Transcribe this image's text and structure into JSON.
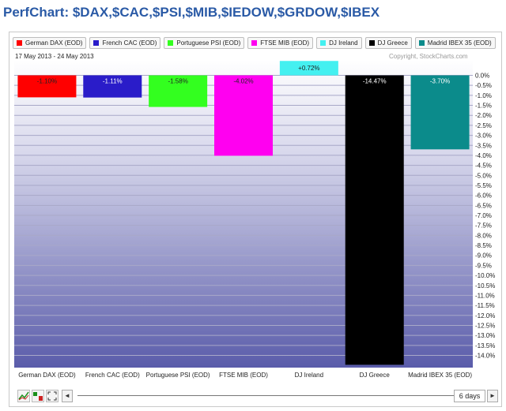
{
  "page": {
    "title": "PerfChart: $DAX,$CAC,$PSI,$MIB,$IEDOW,$GRDOW,$IBEX"
  },
  "header": {
    "date_range": "17 May 2013 - 24 May 2013",
    "copyright": "Copyright, StockCharts.com"
  },
  "legend": [
    {
      "label": "German DAX (EOD)",
      "color": "#ff0000"
    },
    {
      "label": "French CAC (EOD)",
      "color": "#2a1cc9"
    },
    {
      "label": "Portuguese PSI (EOD)",
      "color": "#33ff1f"
    },
    {
      "label": "FTSE MIB (EOD)",
      "color": "#ff00f0"
    },
    {
      "label": "DJ Ireland",
      "color": "#44f0f0"
    },
    {
      "label": "DJ Greece",
      "color": "#000000"
    },
    {
      "label": "Madrid IBEX 35 (EOD)",
      "color": "#0b8b8b"
    }
  ],
  "chart_data": {
    "type": "bar",
    "categories": [
      "German DAX (EOD)",
      "French CAC (EOD)",
      "Portuguese PSI (EOD)",
      "FTSE MIB (EOD)",
      "DJ Ireland",
      "DJ Greece",
      "Madrid IBEX 35 (EOD)"
    ],
    "values": [
      -1.1,
      -1.11,
      -1.58,
      -4.02,
      0.72,
      -14.47,
      -3.7
    ],
    "value_labels": [
      "-1.10%",
      "-1.11%",
      "-1.58%",
      "-4.02%",
      "+0.72%",
      "-14.47%",
      "-3.70%"
    ],
    "colors": [
      "#ff0000",
      "#2a1cc9",
      "#33ff1f",
      "#ff00f0",
      "#44f0f0",
      "#000000",
      "#0b8b8b"
    ],
    "ylim": [
      -14.5,
      0.72
    ],
    "y_ticks": [
      0,
      -0.5,
      -1.0,
      -1.5,
      -2.0,
      -2.5,
      -3.0,
      -3.5,
      -4.0,
      -4.5,
      -5.0,
      -5.5,
      -6.0,
      -6.5,
      -7.0,
      -7.5,
      -8.0,
      -8.5,
      -9.0,
      -9.5,
      -10.0,
      -10.5,
      -11.0,
      -11.5,
      -12.0,
      -12.5,
      -13.0,
      -13.5,
      -14.0
    ],
    "y_tick_labels": [
      "0.0%",
      "-0.5%",
      "-1.0%",
      "-1.5%",
      "-2.0%",
      "-2.5%",
      "-3.0%",
      "-3.5%",
      "-4.0%",
      "-4.5%",
      "-5.0%",
      "-5.5%",
      "-6.0%",
      "-6.5%",
      "-7.0%",
      "-7.5%",
      "-8.0%",
      "-8.5%",
      "-9.0%",
      "-9.5%",
      "-10.0%",
      "-10.5%",
      "-11.0%",
      "-11.5%",
      "-12.0%",
      "-12.5%",
      "-13.0%",
      "-13.5%",
      "-14.0%"
    ],
    "y_axis_position": "right",
    "grid": true,
    "legend_position": "top",
    "title": "",
    "xlabel": "",
    "ylabel": ""
  },
  "controls": {
    "period": "6 days",
    "icons": [
      "line-chart-icon",
      "bar-chart-icon",
      "fullscreen-icon"
    ],
    "scroll_left": "◄",
    "scroll_right": "►"
  }
}
